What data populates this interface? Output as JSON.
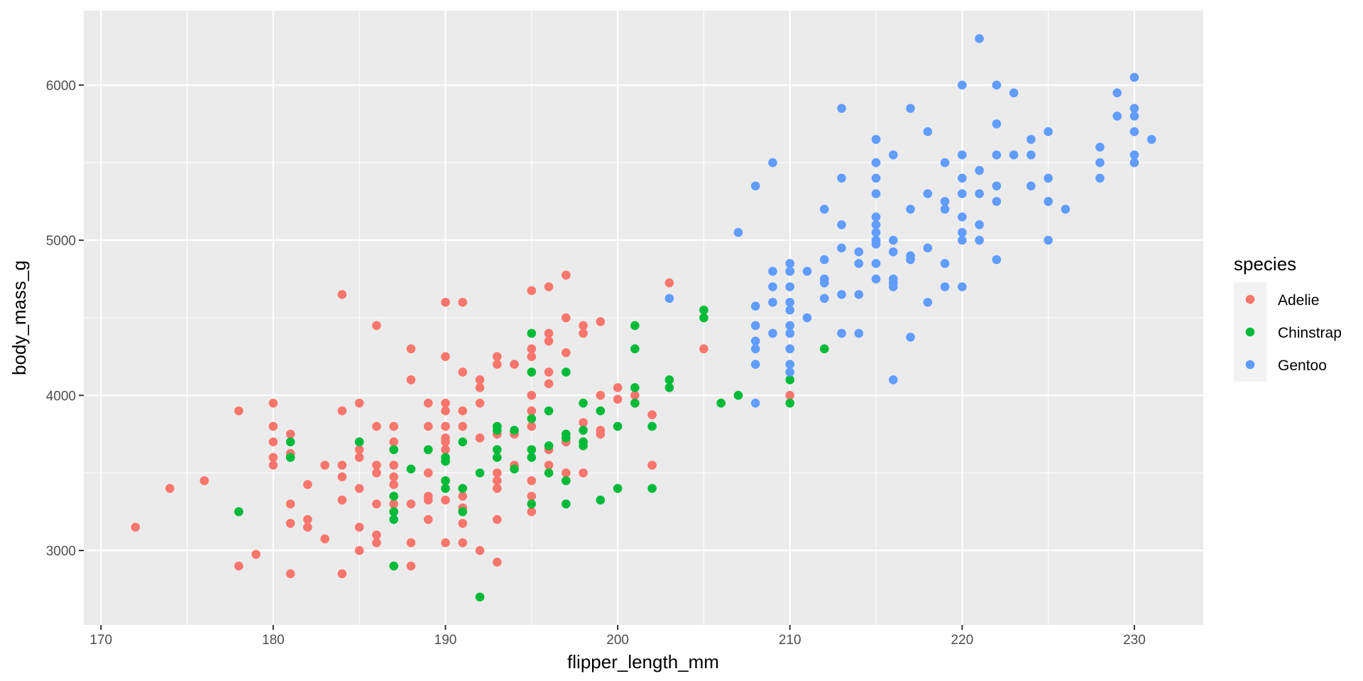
{
  "chart_data": {
    "type": "scatter",
    "xlabel": "flipper_length_mm",
    "ylabel": "body_mass_g",
    "xlim": [
      169,
      234
    ],
    "ylim": [
      2520,
      6480
    ],
    "x_ticks": [
      170,
      180,
      190,
      200,
      210,
      220,
      230
    ],
    "y_ticks": [
      3000,
      4000,
      5000,
      6000
    ],
    "x_tick_labels": [
      "170",
      "180",
      "190",
      "200",
      "210",
      "220",
      "230"
    ],
    "y_tick_labels": [
      "3000",
      "4000",
      "5000",
      "6000"
    ],
    "grid": true,
    "legend": {
      "title": "species",
      "placement": "right"
    },
    "series": [
      {
        "name": "Adelie",
        "color": "#F8766D",
        "points": [
          [
            172,
            3150
          ],
          [
            174,
            3400
          ],
          [
            176,
            3450
          ],
          [
            178,
            3900
          ],
          [
            178,
            2900
          ],
          [
            179,
            2975
          ],
          [
            180,
            3950
          ],
          [
            180,
            3800
          ],
          [
            180,
            3700
          ],
          [
            180,
            3600
          ],
          [
            180,
            3550
          ],
          [
            181,
            3750
          ],
          [
            181,
            3625
          ],
          [
            181,
            3300
          ],
          [
            181,
            3175
          ],
          [
            181,
            2850
          ],
          [
            182,
            3425
          ],
          [
            182,
            3200
          ],
          [
            182,
            3150
          ],
          [
            183,
            3550
          ],
          [
            183,
            3075
          ],
          [
            184,
            4650
          ],
          [
            184,
            3900
          ],
          [
            184,
            3550
          ],
          [
            184,
            3475
          ],
          [
            184,
            3325
          ],
          [
            184,
            2850
          ],
          [
            185,
            3950
          ],
          [
            185,
            3700
          ],
          [
            185,
            3650
          ],
          [
            185,
            3600
          ],
          [
            185,
            3400
          ],
          [
            185,
            3150
          ],
          [
            185,
            3000
          ],
          [
            186,
            4450
          ],
          [
            186,
            3800
          ],
          [
            186,
            3550
          ],
          [
            186,
            3500
          ],
          [
            186,
            3300
          ],
          [
            186,
            3100
          ],
          [
            186,
            3050
          ],
          [
            187,
            3800
          ],
          [
            187,
            3700
          ],
          [
            187,
            3550
          ],
          [
            187,
            3475
          ],
          [
            187,
            3425
          ],
          [
            187,
            3300
          ],
          [
            187,
            3250
          ],
          [
            188,
            4300
          ],
          [
            188,
            4100
          ],
          [
            188,
            3300
          ],
          [
            188,
            3050
          ],
          [
            188,
            2900
          ],
          [
            189,
            3950
          ],
          [
            189,
            3800
          ],
          [
            189,
            3500
          ],
          [
            189,
            3350
          ],
          [
            189,
            3325
          ],
          [
            189,
            3200
          ],
          [
            190,
            4600
          ],
          [
            190,
            4250
          ],
          [
            190,
            3950
          ],
          [
            190,
            3900
          ],
          [
            190,
            3800
          ],
          [
            190,
            3725
          ],
          [
            190,
            3700
          ],
          [
            190,
            3650
          ],
          [
            190,
            3600
          ],
          [
            190,
            3450
          ],
          [
            190,
            3325
          ],
          [
            190,
            3050
          ],
          [
            191,
            4600
          ],
          [
            191,
            4150
          ],
          [
            191,
            3900
          ],
          [
            191,
            3800
          ],
          [
            191,
            3350
          ],
          [
            191,
            3275
          ],
          [
            191,
            3175
          ],
          [
            191,
            3050
          ],
          [
            192,
            4100
          ],
          [
            192,
            4050
          ],
          [
            192,
            3950
          ],
          [
            192,
            3725
          ],
          [
            192,
            3000
          ],
          [
            193,
            4250
          ],
          [
            193,
            4200
          ],
          [
            193,
            3800
          ],
          [
            193,
            3750
          ],
          [
            193,
            3500
          ],
          [
            193,
            3450
          ],
          [
            193,
            3400
          ],
          [
            193,
            3200
          ],
          [
            193,
            2925
          ],
          [
            194,
            4200
          ],
          [
            194,
            3750
          ],
          [
            194,
            3550
          ],
          [
            195,
            4675
          ],
          [
            195,
            4300
          ],
          [
            195,
            4250
          ],
          [
            195,
            4000
          ],
          [
            195,
            3900
          ],
          [
            195,
            3800
          ],
          [
            195,
            3450
          ],
          [
            195,
            3350
          ],
          [
            195,
            3250
          ],
          [
            196,
            4700
          ],
          [
            196,
            4400
          ],
          [
            196,
            4350
          ],
          [
            196,
            4150
          ],
          [
            196,
            4075
          ],
          [
            196,
            3650
          ],
          [
            196,
            3550
          ],
          [
            197,
            4775
          ],
          [
            197,
            4500
          ],
          [
            197,
            4275
          ],
          [
            197,
            3700
          ],
          [
            197,
            3500
          ],
          [
            198,
            4450
          ],
          [
            198,
            4400
          ],
          [
            198,
            3825
          ],
          [
            198,
            3700
          ],
          [
            198,
            3500
          ],
          [
            199,
            4475
          ],
          [
            199,
            4000
          ],
          [
            199,
            3775
          ],
          [
            199,
            3750
          ],
          [
            200,
            4050
          ],
          [
            200,
            3975
          ],
          [
            201,
            4000
          ],
          [
            201,
            3950
          ],
          [
            202,
            3875
          ],
          [
            202,
            3550
          ],
          [
            203,
            4725
          ],
          [
            205,
            4300
          ],
          [
            210,
            4000
          ]
        ]
      },
      {
        "name": "Chinstrap",
        "color": "#00BA38",
        "points": [
          [
            178,
            3250
          ],
          [
            181,
            3700
          ],
          [
            181,
            3600
          ],
          [
            185,
            3700
          ],
          [
            187,
            3650
          ],
          [
            187,
            3350
          ],
          [
            187,
            3250
          ],
          [
            187,
            3200
          ],
          [
            187,
            2900
          ],
          [
            188,
            3525
          ],
          [
            189,
            3650
          ],
          [
            190,
            3600
          ],
          [
            190,
            3575
          ],
          [
            190,
            3450
          ],
          [
            190,
            3400
          ],
          [
            191,
            3700
          ],
          [
            191,
            3400
          ],
          [
            191,
            3250
          ],
          [
            192,
            3500
          ],
          [
            192,
            2700
          ],
          [
            193,
            3800
          ],
          [
            193,
            3775
          ],
          [
            193,
            3650
          ],
          [
            193,
            3600
          ],
          [
            194,
            3775
          ],
          [
            194,
            3525
          ],
          [
            195,
            4400
          ],
          [
            195,
            4150
          ],
          [
            195,
            3850
          ],
          [
            195,
            3650
          ],
          [
            195,
            3600
          ],
          [
            195,
            3300
          ],
          [
            196,
            3900
          ],
          [
            196,
            3675
          ],
          [
            196,
            3500
          ],
          [
            197,
            4150
          ],
          [
            197,
            3750
          ],
          [
            197,
            3725
          ],
          [
            197,
            3450
          ],
          [
            197,
            3300
          ],
          [
            198,
            3950
          ],
          [
            198,
            3775
          ],
          [
            198,
            3700
          ],
          [
            198,
            3675
          ],
          [
            199,
            3900
          ],
          [
            199,
            3325
          ],
          [
            200,
            3800
          ],
          [
            200,
            3400
          ],
          [
            201,
            4450
          ],
          [
            201,
            4300
          ],
          [
            201,
            4050
          ],
          [
            201,
            3950
          ],
          [
            202,
            3800
          ],
          [
            202,
            3400
          ],
          [
            203,
            4100
          ],
          [
            203,
            4050
          ],
          [
            205,
            4550
          ],
          [
            205,
            4500
          ],
          [
            206,
            3950
          ],
          [
            207,
            4000
          ],
          [
            210,
            4800
          ],
          [
            210,
            4100
          ],
          [
            210,
            3950
          ],
          [
            212,
            4300
          ]
        ]
      },
      {
        "name": "Gentoo",
        "color": "#619CFF",
        "points": [
          [
            203,
            4625
          ],
          [
            207,
            5050
          ],
          [
            208,
            5350
          ],
          [
            208,
            4575
          ],
          [
            208,
            4450
          ],
          [
            208,
            4350
          ],
          [
            208,
            4300
          ],
          [
            208,
            4200
          ],
          [
            208,
            3950
          ],
          [
            209,
            5500
          ],
          [
            209,
            4800
          ],
          [
            209,
            4700
          ],
          [
            209,
            4600
          ],
          [
            209,
            4400
          ],
          [
            210,
            4850
          ],
          [
            210,
            4800
          ],
          [
            210,
            4700
          ],
          [
            210,
            4600
          ],
          [
            210,
            4550
          ],
          [
            210,
            4450
          ],
          [
            210,
            4400
          ],
          [
            210,
            4300
          ],
          [
            210,
            4200
          ],
          [
            210,
            4150
          ],
          [
            211,
            4800
          ],
          [
            211,
            4500
          ],
          [
            212,
            5200
          ],
          [
            212,
            4875
          ],
          [
            212,
            4750
          ],
          [
            212,
            4725
          ],
          [
            212,
            4625
          ],
          [
            213,
            5850
          ],
          [
            213,
            5400
          ],
          [
            213,
            5100
          ],
          [
            213,
            4950
          ],
          [
            213,
            4650
          ],
          [
            213,
            4400
          ],
          [
            214,
            4925
          ],
          [
            214,
            4850
          ],
          [
            214,
            4650
          ],
          [
            214,
            4400
          ],
          [
            215,
            5650
          ],
          [
            215,
            5500
          ],
          [
            215,
            5400
          ],
          [
            215,
            5300
          ],
          [
            215,
            5150
          ],
          [
            215,
            5100
          ],
          [
            215,
            5050
          ],
          [
            215,
            5000
          ],
          [
            215,
            4975
          ],
          [
            215,
            4850
          ],
          [
            215,
            4750
          ],
          [
            216,
            5550
          ],
          [
            216,
            5000
          ],
          [
            216,
            4925
          ],
          [
            216,
            4750
          ],
          [
            216,
            4725
          ],
          [
            216,
            4700
          ],
          [
            216,
            4100
          ],
          [
            217,
            5850
          ],
          [
            217,
            5200
          ],
          [
            217,
            4900
          ],
          [
            217,
            4875
          ],
          [
            217,
            4375
          ],
          [
            218,
            5700
          ],
          [
            218,
            5300
          ],
          [
            218,
            4950
          ],
          [
            218,
            4600
          ],
          [
            219,
            5500
          ],
          [
            219,
            5250
          ],
          [
            219,
            5200
          ],
          [
            219,
            4850
          ],
          [
            219,
            4700
          ],
          [
            220,
            6000
          ],
          [
            220,
            5550
          ],
          [
            220,
            5400
          ],
          [
            220,
            5300
          ],
          [
            220,
            5150
          ],
          [
            220,
            5050
          ],
          [
            220,
            5000
          ],
          [
            220,
            4700
          ],
          [
            221,
            6300
          ],
          [
            221,
            5450
          ],
          [
            221,
            5300
          ],
          [
            221,
            5100
          ],
          [
            221,
            5000
          ],
          [
            222,
            6000
          ],
          [
            222,
            5750
          ],
          [
            222,
            5550
          ],
          [
            222,
            5350
          ],
          [
            222,
            5250
          ],
          [
            222,
            4875
          ],
          [
            223,
            5950
          ],
          [
            223,
            5550
          ],
          [
            224,
            5650
          ],
          [
            224,
            5550
          ],
          [
            224,
            5350
          ],
          [
            225,
            5700
          ],
          [
            225,
            5400
          ],
          [
            225,
            5250
          ],
          [
            225,
            5000
          ],
          [
            226,
            5200
          ],
          [
            228,
            5600
          ],
          [
            228,
            5500
          ],
          [
            228,
            5400
          ],
          [
            229,
            5950
          ],
          [
            229,
            5800
          ],
          [
            230,
            6050
          ],
          [
            230,
            5850
          ],
          [
            230,
            5800
          ],
          [
            230,
            5700
          ],
          [
            230,
            5550
          ],
          [
            230,
            5500
          ],
          [
            231,
            5650
          ]
        ]
      }
    ]
  }
}
